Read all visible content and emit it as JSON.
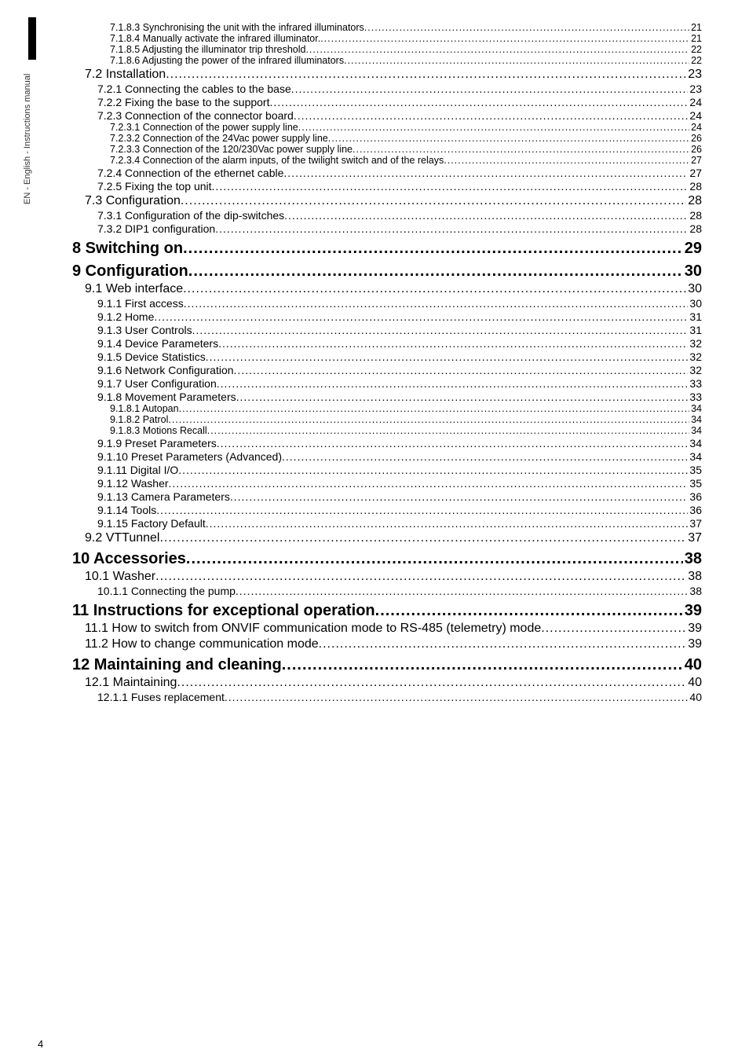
{
  "side_label": "EN - English - Instructions manual",
  "page_number": "4",
  "toc": [
    {
      "level": "h4",
      "label": "7.1.8.3 Synchronising the unit with the infrared illuminators",
      "page": "21"
    },
    {
      "level": "h4",
      "label": "7.1.8.4 Manually activate the infrared illuminator.",
      "page": "21"
    },
    {
      "level": "h4",
      "label": "7.1.8.5 Adjusting the illuminator trip threshold",
      "page": "22"
    },
    {
      "level": "h4",
      "label": "7.1.8.6 Adjusting the power of the infrared illuminators",
      "page": "22"
    },
    {
      "level": "h2",
      "label": "7.2 Installation",
      "page": "23"
    },
    {
      "level": "h3",
      "label": "7.2.1 Connecting the cables to the base",
      "page": "23"
    },
    {
      "level": "h3",
      "label": "7.2.2 Fixing the base to the support",
      "page": "24"
    },
    {
      "level": "h3",
      "label": "7.2.3 Connection of the connector board",
      "page": "24"
    },
    {
      "level": "h4",
      "label": "7.2.3.1 Connection of the power supply line",
      "page": "24"
    },
    {
      "level": "h4",
      "label": "7.2.3.2 Connection of the 24Vac power supply line",
      "page": "26"
    },
    {
      "level": "h4",
      "label": "7.2.3.3 Connection of the 120/230Vac power supply line",
      "page": "26"
    },
    {
      "level": "h4",
      "label": "7.2.3.4 Connection of the alarm inputs, of the twilight switch and of the relays",
      "page": "27"
    },
    {
      "level": "h3",
      "label": "7.2.4 Connection of the ethernet cable",
      "page": "27"
    },
    {
      "level": "h3",
      "label": "7.2.5 Fixing the top unit",
      "page": "28"
    },
    {
      "level": "h2",
      "label": "7.3 Configuration",
      "page": "28"
    },
    {
      "level": "h3",
      "label": "7.3.1 Configuration of the dip-switches",
      "page": "28"
    },
    {
      "level": "h3",
      "label": "7.3.2 DIP1 configuration",
      "page": "28"
    },
    {
      "level": "h1",
      "label": "8 Switching on ",
      "page": " 29"
    },
    {
      "level": "h1",
      "label": "9 Configuration",
      "page": " 30"
    },
    {
      "level": "h2",
      "label": "9.1 Web interface",
      "page": "30"
    },
    {
      "level": "h3",
      "label": "9.1.1 First access",
      "page": "30"
    },
    {
      "level": "h3",
      "label": "9.1.2 Home",
      "page": "31"
    },
    {
      "level": "h3",
      "label": "9.1.3 User Controls",
      "page": "31"
    },
    {
      "level": "h3",
      "label": "9.1.4 Device Parameters",
      "page": "32"
    },
    {
      "level": "h3",
      "label": "9.1.5 Device Statistics",
      "page": "32"
    },
    {
      "level": "h3",
      "label": "9.1.6 Network Configuration",
      "page": "32"
    },
    {
      "level": "h3",
      "label": "9.1.7 User Configuration",
      "page": "33"
    },
    {
      "level": "h3",
      "label": "9.1.8 Movement Parameters",
      "page": "33"
    },
    {
      "level": "h4",
      "label": "9.1.8.1 Autopan",
      "page": "34"
    },
    {
      "level": "h4",
      "label": "9.1.8.2 Patrol",
      "page": "34"
    },
    {
      "level": "h4",
      "label": "9.1.8.3 Motions Recall",
      "page": "34"
    },
    {
      "level": "h3",
      "label": "9.1.9 Preset Parameters",
      "page": "34"
    },
    {
      "level": "h3",
      "label": "9.1.10 Preset Parameters (Advanced)",
      "page": "34"
    },
    {
      "level": "h3",
      "label": "9.1.11 Digital I/O",
      "page": "35"
    },
    {
      "level": "h3",
      "label": "9.1.12 Washer",
      "page": "35"
    },
    {
      "level": "h3",
      "label": "9.1.13 Camera Parameters",
      "page": "36"
    },
    {
      "level": "h3",
      "label": "9.1.14 Tools",
      "page": "36"
    },
    {
      "level": "h3",
      "label": "9.1.15 Factory Default",
      "page": "37"
    },
    {
      "level": "h2",
      "label": "9.2 VTTunnel",
      "page": "37"
    },
    {
      "level": "h1",
      "label": "10 Accessories",
      "page": " 38"
    },
    {
      "level": "h2",
      "label": "10.1 Washer",
      "page": "38"
    },
    {
      "level": "h3",
      "label": "10.1.1 Connecting the pump",
      "page": "38"
    },
    {
      "level": "h1",
      "label": "11 Instructions for exceptional operation",
      "page": " 39"
    },
    {
      "level": "h2",
      "label": "11.1 How to switch from ONVIF communication mode to RS-485 (telemetry) mode",
      "page": "39"
    },
    {
      "level": "h2",
      "label": "11.2 How to change communication mode",
      "page": "39"
    },
    {
      "level": "h1",
      "label": "12 Maintaining and cleaning",
      "page": " 40"
    },
    {
      "level": "h2",
      "label": "12.1 Maintaining",
      "page": "40"
    },
    {
      "level": "h3",
      "label": "12.1.1 Fuses replacement",
      "page": "40"
    }
  ]
}
